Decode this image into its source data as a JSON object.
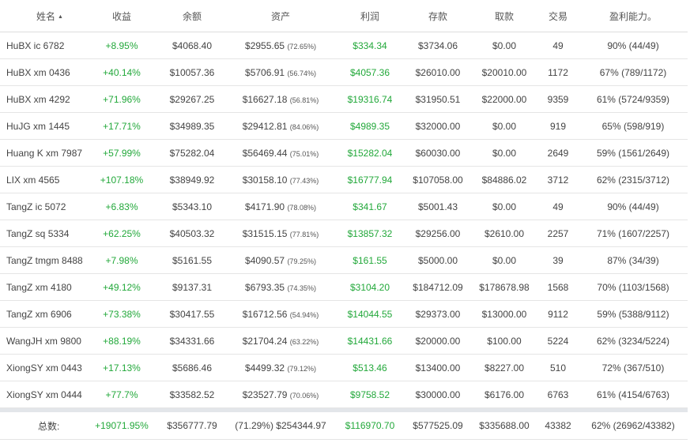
{
  "headers": {
    "name": "姓名",
    "profit_pct": "收益",
    "balance": "余额",
    "assets": "资产",
    "profit": "利润",
    "deposit": "存款",
    "withdraw": "取款",
    "trades": "交易",
    "win_rate": "盈利能力。"
  },
  "sort_icon": "sort-ascending-icon",
  "accent_color": "#22a83a",
  "rows": [
    {
      "name": "HuBX ic 6782",
      "profit_pct": "+8.95%",
      "balance": "$4068.40",
      "assets": "$2955.65",
      "assets_pct": "(72.65%)",
      "profit": "$334.34",
      "deposit": "$3734.06",
      "withdraw": "$0.00",
      "trades": "49",
      "win_rate": "90% (44/49)"
    },
    {
      "name": "HuBX xm 0436",
      "profit_pct": "+40.14%",
      "balance": "$10057.36",
      "assets": "$5706.91",
      "assets_pct": "(56.74%)",
      "profit": "$4057.36",
      "deposit": "$26010.00",
      "withdraw": "$20010.00",
      "trades": "1172",
      "win_rate": "67% (789/1172)"
    },
    {
      "name": "HuBX xm 4292",
      "profit_pct": "+71.96%",
      "balance": "$29267.25",
      "assets": "$16627.18",
      "assets_pct": "(56.81%)",
      "profit": "$19316.74",
      "deposit": "$31950.51",
      "withdraw": "$22000.00",
      "trades": "9359",
      "win_rate": "61% (5724/9359)"
    },
    {
      "name": "HuJG xm 1445",
      "profit_pct": "+17.71%",
      "balance": "$34989.35",
      "assets": "$29412.81",
      "assets_pct": "(84.06%)",
      "profit": "$4989.35",
      "deposit": "$32000.00",
      "withdraw": "$0.00",
      "trades": "919",
      "win_rate": "65% (598/919)"
    },
    {
      "name": "Huang K xm 7987",
      "profit_pct": "+57.99%",
      "balance": "$75282.04",
      "assets": "$56469.44",
      "assets_pct": "(75.01%)",
      "profit": "$15282.04",
      "deposit": "$60030.00",
      "withdraw": "$0.00",
      "trades": "2649",
      "win_rate": "59% (1561/2649)"
    },
    {
      "name": "LIX xm 4565",
      "profit_pct": "+107.18%",
      "balance": "$38949.92",
      "assets": "$30158.10",
      "assets_pct": "(77.43%)",
      "profit": "$16777.94",
      "deposit": "$107058.00",
      "withdraw": "$84886.02",
      "trades": "3712",
      "win_rate": "62% (2315/3712)"
    },
    {
      "name": "TangZ ic 5072",
      "profit_pct": "+6.83%",
      "balance": "$5343.10",
      "assets": "$4171.90",
      "assets_pct": "(78.08%)",
      "profit": "$341.67",
      "deposit": "$5001.43",
      "withdraw": "$0.00",
      "trades": "49",
      "win_rate": "90% (44/49)"
    },
    {
      "name": "TangZ sq 5334",
      "profit_pct": "+62.25%",
      "balance": "$40503.32",
      "assets": "$31515.15",
      "assets_pct": "(77.81%)",
      "profit": "$13857.32",
      "deposit": "$29256.00",
      "withdraw": "$2610.00",
      "trades": "2257",
      "win_rate": "71% (1607/2257)"
    },
    {
      "name": "TangZ tmgm 8488",
      "profit_pct": "+7.98%",
      "balance": "$5161.55",
      "assets": "$4090.57",
      "assets_pct": "(79.25%)",
      "profit": "$161.55",
      "deposit": "$5000.00",
      "withdraw": "$0.00",
      "trades": "39",
      "win_rate": "87% (34/39)"
    },
    {
      "name": "TangZ xm 4180",
      "profit_pct": "+49.12%",
      "balance": "$9137.31",
      "assets": "$6793.35",
      "assets_pct": "(74.35%)",
      "profit": "$3104.20",
      "deposit": "$184712.09",
      "withdraw": "$178678.98",
      "trades": "1568",
      "win_rate": "70% (1103/1568)"
    },
    {
      "name": "TangZ xm 6906",
      "profit_pct": "+73.38%",
      "balance": "$30417.55",
      "assets": "$16712.56",
      "assets_pct": "(54.94%)",
      "profit": "$14044.55",
      "deposit": "$29373.00",
      "withdraw": "$13000.00",
      "trades": "9112",
      "win_rate": "59% (5388/9112)"
    },
    {
      "name": "WangJH xm 9800",
      "profit_pct": "+88.19%",
      "balance": "$34331.66",
      "assets": "$21704.24",
      "assets_pct": "(63.22%)",
      "profit": "$14431.66",
      "deposit": "$20000.00",
      "withdraw": "$100.00",
      "trades": "5224",
      "win_rate": "62% (3234/5224)"
    },
    {
      "name": "XiongSY xm 0443",
      "profit_pct": "+17.13%",
      "balance": "$5686.46",
      "assets": "$4499.32",
      "assets_pct": "(79.12%)",
      "profit": "$513.46",
      "deposit": "$13400.00",
      "withdraw": "$8227.00",
      "trades": "510",
      "win_rate": "72% (367/510)"
    },
    {
      "name": "XiongSY xm 0444",
      "profit_pct": "+77.7%",
      "balance": "$33582.52",
      "assets": "$23527.79",
      "assets_pct": "(70.06%)",
      "profit": "$9758.52",
      "deposit": "$30000.00",
      "withdraw": "$6176.00",
      "trades": "6763",
      "win_rate": "61% (4154/6763)"
    }
  ],
  "total": {
    "label": "总数:",
    "profit_pct": "+19071.95%",
    "balance": "$356777.79",
    "assets": "(71.29%) $254344.97",
    "profit": "$116970.70",
    "deposit": "$577525.09",
    "withdraw": "$335688.00",
    "trades": "43382",
    "win_rate": "62% (26962/43382)"
  }
}
